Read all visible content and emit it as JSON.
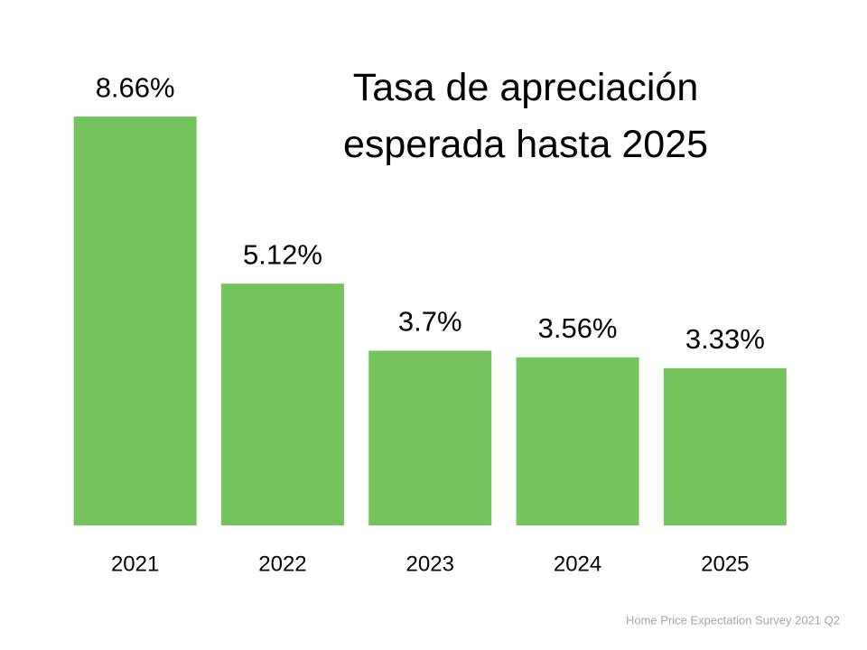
{
  "chart_data": {
    "type": "bar",
    "title": "Tasa de apreciación esperada hasta 2025",
    "categories": [
      "2021",
      "2022",
      "2023",
      "2024",
      "2025"
    ],
    "values": [
      8.66,
      5.12,
      3.7,
      3.56,
      3.33
    ],
    "value_labels": [
      "8.66%",
      "5.12%",
      "3.7%",
      "3.56%",
      "3.33%"
    ],
    "color": "#75c35c",
    "source": "Home Price Expectation Survey 2021 Q2"
  }
}
